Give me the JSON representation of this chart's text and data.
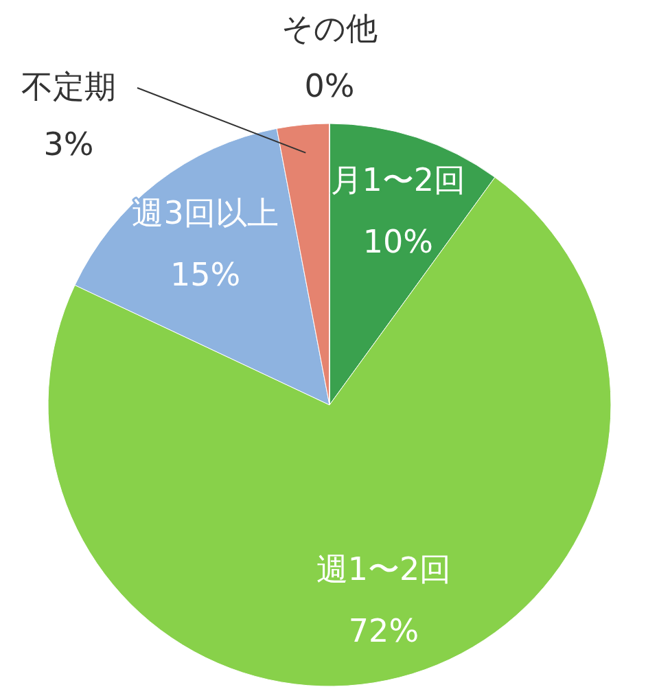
{
  "chart_data": {
    "type": "pie",
    "categories": [
      "月1〜2回",
      "週1〜2回",
      "週3回以上",
      "不定期",
      "その他"
    ],
    "values": [
      10,
      72,
      15,
      3,
      0
    ],
    "value_labels": [
      "10%",
      "72%",
      "15%",
      "3%",
      "0%"
    ],
    "colors": [
      "#3aa14e",
      "#88d14a",
      "#8eb3e0",
      "#e5836f",
      "#b0b0b0"
    ]
  }
}
